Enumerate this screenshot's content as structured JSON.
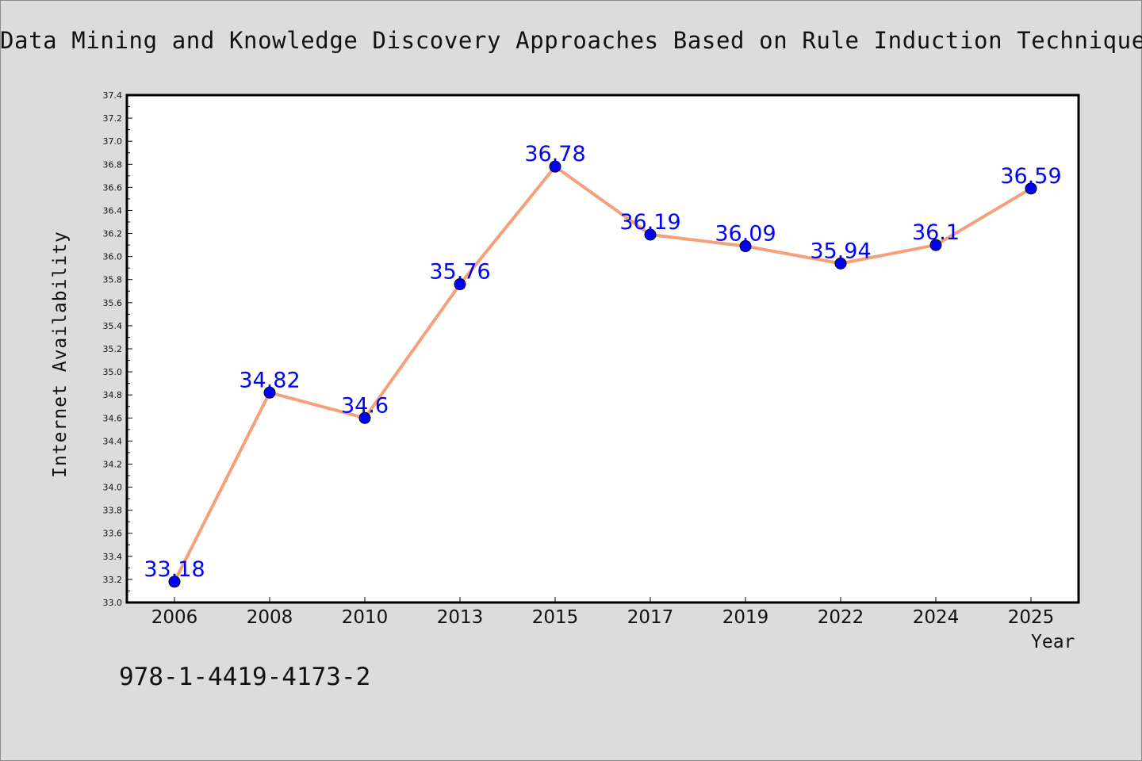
{
  "chart_data": {
    "type": "line",
    "title": "Data Mining and Knowledge Discovery Approaches Based on Rule Induction Techniques",
    "xlabel": "Year",
    "ylabel": "Internet Availability",
    "categories": [
      "2006",
      "2008",
      "2010",
      "2013",
      "2015",
      "2017",
      "2019",
      "2022",
      "2024",
      "2025"
    ],
    "series": [
      {
        "values": [
          33.18,
          34.82,
          34.6,
          35.76,
          36.78,
          36.19,
          36.09,
          35.94,
          36.1,
          36.59
        ],
        "data_labels": [
          "33.18",
          "34.82",
          "34.6",
          "35.76",
          "36.78",
          "36.19",
          "36.09",
          "35.94",
          "36.1",
          "36.59"
        ]
      }
    ],
    "ylim": [
      33.0,
      37.4
    ],
    "yticks": [
      "33.0",
      "33.2",
      "33.4",
      "33.6",
      "33.8",
      "34.0",
      "34.2",
      "34.4",
      "34.6",
      "34.8",
      "35.0",
      "35.2",
      "35.4",
      "35.6",
      "35.8",
      "36.0",
      "36.2",
      "36.4",
      "36.6",
      "36.8",
      "37.0",
      "37.2",
      "37.4"
    ],
    "grid": false,
    "legend": "none",
    "colors": {
      "line": "#f4a07a",
      "marker": "#0000ff",
      "data_label": "#0000ff",
      "background": "#dcdcdc",
      "plot_area": "#ffffff"
    }
  },
  "footer": {
    "isbn": "978-1-4419-4173-2"
  }
}
